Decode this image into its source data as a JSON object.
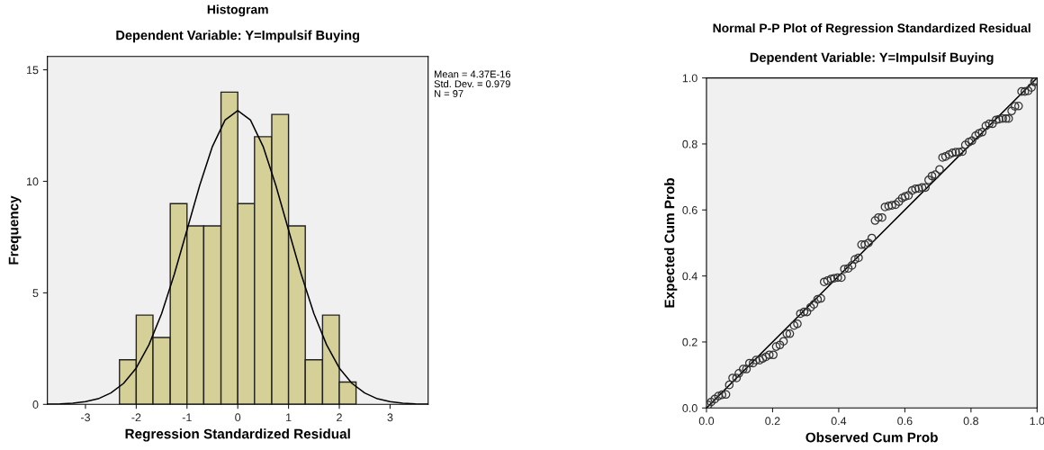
{
  "chart_data": [
    {
      "type": "histogram",
      "title": "Histogram",
      "subtitle": "Dependent Variable: Y=Impulsif Buying",
      "xlabel": "Regression Standardized Residual",
      "ylabel": "Frequency",
      "bins": [
        -2.33,
        -2,
        -1.67,
        -1.33,
        -1,
        -0.67,
        -0.33,
        0,
        0.33,
        0.67,
        1,
        1.33,
        1.67,
        2,
        2.33
      ],
      "values": [
        2,
        4,
        3,
        9,
        8,
        8,
        14,
        9,
        12,
        13,
        8,
        2,
        4,
        1
      ],
      "color": "#d5cf98",
      "series": [
        {
          "type": "line",
          "color": "#000000",
          "x": [
            -3.75,
            -3.5,
            -3.25,
            -3,
            -2.75,
            -2.5,
            -2.25,
            -2,
            -1.75,
            -1.5,
            -1.25,
            -1,
            -0.75,
            -0.5,
            -0.25,
            0,
            0.25,
            0.5,
            0.75,
            1,
            1.25,
            1.5,
            1.75,
            2,
            2.25,
            2.5,
            2.75,
            3,
            3.25,
            3.5,
            3.75
          ],
          "values": [
            0.01,
            0.02,
            0.05,
            0.12,
            0.25,
            0.51,
            0.94,
            1.63,
            2.67,
            4.07,
            5.83,
            7.82,
            9.82,
            11.56,
            12.75,
            13.17,
            12.75,
            11.56,
            9.82,
            7.82,
            5.83,
            4.07,
            2.67,
            1.63,
            0.94,
            0.51,
            0.25,
            0.12,
            0.05,
            0.02,
            0.01
          ]
        }
      ],
      "xlim": [
        -3.75,
        3.75
      ],
      "ylim": [
        0,
        15.6
      ],
      "xticks": [
        -3,
        -2,
        -1,
        0,
        1,
        2,
        3
      ],
      "yticks": [
        0,
        5,
        10,
        15
      ],
      "annotations": [
        "Mean = 4.37E-16",
        "Std. Dev. = 0.979",
        "N = 97"
      ]
    },
    {
      "type": "scatter",
      "title": "Normal P-P Plot of Regression Standardized Residual",
      "subtitle": "Dependent Variable: Y=Impulsif Buying",
      "xlabel": "Observed Cum Prob",
      "ylabel": "Expected Cum Prob",
      "series": [
        {
          "type": "scatter",
          "marker": "circle",
          "color": "#333333",
          "x": [
            0.005,
            0.014,
            0.025,
            0.036,
            0.047,
            0.059,
            0.069,
            0.079,
            0.091,
            0.098,
            0.111,
            0.121,
            0.13,
            0.141,
            0.15,
            0.161,
            0.17,
            0.18,
            0.19,
            0.202,
            0.211,
            0.222,
            0.233,
            0.243,
            0.252,
            0.265,
            0.275,
            0.284,
            0.295,
            0.304,
            0.315,
            0.325,
            0.336,
            0.346,
            0.356,
            0.366,
            0.377,
            0.386,
            0.397,
            0.408,
            0.417,
            0.429,
            0.44,
            0.449,
            0.46,
            0.469,
            0.479,
            0.49,
            0.5,
            0.51,
            0.52,
            0.531,
            0.54,
            0.551,
            0.561,
            0.572,
            0.582,
            0.592,
            0.601,
            0.611,
            0.622,
            0.632,
            0.642,
            0.652,
            0.662,
            0.672,
            0.682,
            0.692,
            0.705,
            0.714,
            0.723,
            0.734,
            0.744,
            0.754,
            0.764,
            0.774,
            0.783,
            0.794,
            0.803,
            0.814,
            0.824,
            0.834,
            0.845,
            0.855,
            0.865,
            0.876,
            0.885,
            0.896,
            0.906,
            0.914,
            0.923,
            0.933,
            0.944,
            0.953,
            0.963,
            0.973,
            0.983,
            0.992,
            0.996
          ],
          "values": [
            0.009,
            0.018,
            0.027,
            0.036,
            0.04,
            0.041,
            0.07,
            0.091,
            0.091,
            0.105,
            0.118,
            0.118,
            0.136,
            0.136,
            0.145,
            0.145,
            0.15,
            0.155,
            0.161,
            0.161,
            0.186,
            0.191,
            0.202,
            0.225,
            0.225,
            0.25,
            0.255,
            0.286,
            0.291,
            0.291,
            0.305,
            0.314,
            0.329,
            0.332,
            0.382,
            0.386,
            0.391,
            0.393,
            0.395,
            0.395,
            0.421,
            0.423,
            0.432,
            0.45,
            0.455,
            0.495,
            0.495,
            0.5,
            0.515,
            0.568,
            0.577,
            0.577,
            0.609,
            0.612,
            0.614,
            0.616,
            0.625,
            0.636,
            0.641,
            0.644,
            0.659,
            0.664,
            0.665,
            0.668,
            0.668,
            0.691,
            0.703,
            0.707,
            0.723,
            0.759,
            0.762,
            0.768,
            0.773,
            0.775,
            0.775,
            0.777,
            0.797,
            0.806,
            0.81,
            0.825,
            0.832,
            0.836,
            0.855,
            0.861,
            0.861,
            0.873,
            0.875,
            0.877,
            0.877,
            0.877,
            0.9,
            0.914,
            0.915,
            0.959,
            0.959,
            0.961,
            0.971,
            0.988,
            0.993
          ]
        },
        {
          "type": "line",
          "color": "#000000",
          "x": [
            0,
            1
          ],
          "values": [
            0,
            1
          ]
        }
      ],
      "xlim": [
        0,
        1
      ],
      "ylim": [
        0,
        1
      ],
      "xticks": [
        {
          "value": 0,
          "label": "0.0"
        },
        {
          "value": 0.2,
          "label": "0.2"
        },
        {
          "value": 0.4,
          "label": "0.4"
        },
        {
          "value": 0.6,
          "label": "0.6"
        },
        {
          "value": 0.8,
          "label": "0.8"
        },
        {
          "value": 1,
          "label": "1.0"
        }
      ],
      "yticks": [
        {
          "value": 0,
          "label": "0.0"
        },
        {
          "value": 0.2,
          "label": "0.2"
        },
        {
          "value": 0.4,
          "label": "0.4"
        },
        {
          "value": 0.6,
          "label": "0.6"
        },
        {
          "value": 0.8,
          "label": "0.8"
        },
        {
          "value": 1,
          "label": "1.0"
        }
      ]
    }
  ]
}
